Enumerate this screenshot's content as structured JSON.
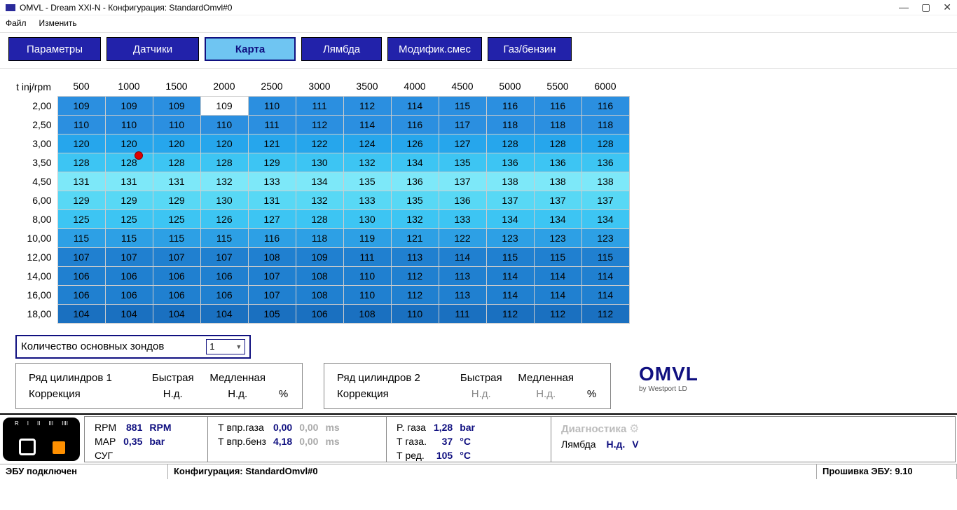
{
  "window": {
    "title": "OMVL - Dream XXI-N - Конфигурация: StandardOmvl#0"
  },
  "menu": {
    "file": "Файл",
    "edit": "Изменить"
  },
  "tabs": {
    "params": "Параметры",
    "sensors": "Датчики",
    "map": "Карта",
    "lambda": "Лямбда",
    "modif": "Модифик.смес",
    "gas": "Газ/бензин",
    "active": "map"
  },
  "map": {
    "x_header": "t inj/rpm",
    "rpm": [
      "500",
      "1000",
      "1500",
      "2000",
      "2500",
      "3000",
      "3500",
      "4000",
      "4500",
      "5000",
      "5500",
      "6000"
    ],
    "rows": [
      {
        "t": "2,00",
        "v": [
          109,
          109,
          109,
          109,
          110,
          111,
          112,
          114,
          115,
          116,
          116,
          116
        ]
      },
      {
        "t": "2,50",
        "v": [
          110,
          110,
          110,
          110,
          111,
          112,
          114,
          116,
          117,
          118,
          118,
          118
        ]
      },
      {
        "t": "3,00",
        "v": [
          120,
          120,
          120,
          120,
          121,
          122,
          124,
          126,
          127,
          128,
          128,
          128
        ]
      },
      {
        "t": "3,50",
        "v": [
          128,
          128,
          128,
          128,
          129,
          130,
          132,
          134,
          135,
          136,
          136,
          136
        ]
      },
      {
        "t": "4,50",
        "v": [
          131,
          131,
          131,
          132,
          133,
          134,
          135,
          136,
          137,
          138,
          138,
          138
        ]
      },
      {
        "t": "6,00",
        "v": [
          129,
          129,
          129,
          130,
          131,
          132,
          133,
          135,
          136,
          137,
          137,
          137
        ]
      },
      {
        "t": "8,00",
        "v": [
          125,
          125,
          125,
          126,
          127,
          128,
          130,
          132,
          133,
          134,
          134,
          134
        ]
      },
      {
        "t": "10,00",
        "v": [
          115,
          115,
          115,
          115,
          116,
          118,
          119,
          121,
          122,
          123,
          123,
          123
        ]
      },
      {
        "t": "12,00",
        "v": [
          107,
          107,
          107,
          107,
          108,
          109,
          111,
          113,
          114,
          115,
          115,
          115
        ]
      },
      {
        "t": "14,00",
        "v": [
          106,
          106,
          106,
          106,
          107,
          108,
          110,
          112,
          113,
          114,
          114,
          114
        ]
      },
      {
        "t": "16,00",
        "v": [
          106,
          106,
          106,
          106,
          107,
          108,
          110,
          112,
          113,
          114,
          114,
          114
        ]
      },
      {
        "t": "18,00",
        "v": [
          104,
          104,
          104,
          104,
          105,
          106,
          108,
          110,
          111,
          112,
          112,
          112
        ]
      }
    ],
    "highlight": {
      "row": 0,
      "col": 3,
      "color": "#ffffff"
    },
    "row_colors": [
      "#2b8fe0",
      "#2b8fe0",
      "#26a6ec",
      "#3dc5f3",
      "#7de8f9",
      "#58d8f5",
      "#3dc5f3",
      "#2da0e5",
      "#2080d0",
      "#2080d0",
      "#2080d0",
      "#1a70c0"
    ],
    "marker": {
      "row": 4,
      "col": 1
    }
  },
  "probes": {
    "label": "Количество основных зондов",
    "value": "1"
  },
  "cyl": {
    "bank1": {
      "title": "Ряд цилиндров 1",
      "fast": "Быстрая",
      "slow": "Медленная",
      "corr": "Коррекция",
      "fv": "Н.д.",
      "sv": "Н.д.",
      "unit": "%",
      "gray": false
    },
    "bank2": {
      "title": "Ряд цилиндров 2",
      "fast": "Быстрая",
      "slow": "Медленная",
      "corr": "Коррекция",
      "fv": "Н.д.",
      "sv": "Н.д.",
      "unit": "%",
      "gray": true
    }
  },
  "logo": {
    "brand": "OMVL",
    "sub": "by Westport LD"
  },
  "bottom": {
    "c1": {
      "rpm_l": "RPM",
      "rpm_v": "881",
      "rpm_u": "RPM",
      "map_l": "MAP",
      "map_v": "0,35",
      "map_u": "bar",
      "sug": "СУГ"
    },
    "c2": {
      "tg_l": "Т впр.газа",
      "tg_v": "0,00",
      "tg_g": "0,00",
      "u": "ms",
      "tb_l": "Т впр.бенз",
      "tb_v": "4,18",
      "tb_g": "0,00"
    },
    "c3": {
      "pg_l": "P. газа",
      "pg_v": "1,28",
      "pg_u": "bar",
      "tg_l": "Т газа.",
      "tg_v": "37",
      "tg_u": "°C",
      "tr_l": "Т ред.",
      "tr_v": "105",
      "tr_u": "°C"
    },
    "c4": {
      "diag": "Диагностика",
      "lam_l": "Лямбда",
      "lam_v": "Н.д.",
      "lam_u": "V"
    }
  },
  "status": {
    "s1": "ЭБУ подключен",
    "s2": "Конфигурация: StandardOmvl#0",
    "s3": "Прошивка ЭБУ: 9.10"
  }
}
